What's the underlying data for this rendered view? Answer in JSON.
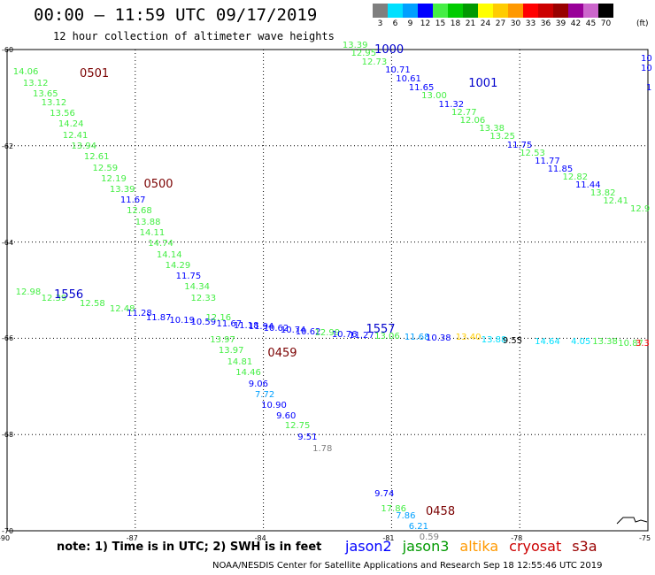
{
  "header": {
    "title": "00:00 – 11:59 UTC 09/17/2019",
    "subtitle": "12 hour collection of altimeter wave heights"
  },
  "legend": {
    "levels": [
      "3",
      "6",
      "9",
      "12",
      "15",
      "18",
      "21",
      "24",
      "27",
      "30",
      "33",
      "36",
      "39",
      "42",
      "45",
      "70"
    ],
    "colors": [
      "#7f7f7f",
      "#00e0ff",
      "#00a0ff",
      "#0000ff",
      "#44ee44",
      "#00cc00",
      "#009900",
      "#ffff00",
      "#ffcc00",
      "#ff9900",
      "#ff0000",
      "#cc0000",
      "#990000",
      "#990099",
      "#cc66cc",
      "#000000"
    ],
    "unit": "(ft)"
  },
  "axes": {
    "lon_labels": [
      "-90",
      "-87",
      "-84",
      "-81",
      "-78",
      "-75"
    ],
    "lat_labels": [
      "-60",
      "-62",
      "-64",
      "-66",
      "-68",
      "-70"
    ]
  },
  "tracks": [
    {
      "time": "0501",
      "lon": -88.3,
      "lat": -60.5
    },
    {
      "time": "0500",
      "lon": -86.8,
      "lat": -62.8
    },
    {
      "time": "0459",
      "lon": -83.9,
      "lat": -66.3
    },
    {
      "time": "0458",
      "lon": -80.2,
      "lat": -69.6
    },
    {
      "time": "1000",
      "lon": -81.4,
      "lat": -60.0
    },
    {
      "time": "1001",
      "lon": -79.2,
      "lat": -60.7
    },
    {
      "time": "1556",
      "lon": -88.9,
      "lat": -65.1
    },
    {
      "time": "1557",
      "lon": -81.6,
      "lat": -65.8
    }
  ],
  "observations": [
    {
      "v": "14.06",
      "c": "#44ee44",
      "lon": -89.86,
      "lat": -60.48
    },
    {
      "v": "13.12",
      "c": "#44ee44",
      "lon": -89.63,
      "lat": -60.72
    },
    {
      "v": "13.65",
      "c": "#44ee44",
      "lon": -89.4,
      "lat": -60.93
    },
    {
      "v": "13.12",
      "c": "#44ee44",
      "lon": -89.2,
      "lat": -61.13
    },
    {
      "v": "13.56",
      "c": "#44ee44",
      "lon": -89.0,
      "lat": -61.35
    },
    {
      "v": "14.24",
      "c": "#44ee44",
      "lon": -88.8,
      "lat": -61.57
    },
    {
      "v": "12.41",
      "c": "#44ee44",
      "lon": -88.7,
      "lat": -61.8
    },
    {
      "v": "13.94",
      "c": "#44ee44",
      "lon": -88.5,
      "lat": -62.02
    },
    {
      "v": "12.61",
      "c": "#44ee44",
      "lon": -88.2,
      "lat": -62.25
    },
    {
      "v": "12.59",
      "c": "#44ee44",
      "lon": -88.0,
      "lat": -62.48
    },
    {
      "v": "12.19",
      "c": "#44ee44",
      "lon": -87.8,
      "lat": -62.7
    },
    {
      "v": "13.39",
      "c": "#44ee44",
      "lon": -87.6,
      "lat": -62.93
    },
    {
      "v": "11.67",
      "c": "#0000ff",
      "lon": -87.35,
      "lat": -63.15
    },
    {
      "v": "12.68",
      "c": "#44ee44",
      "lon": -87.2,
      "lat": -63.37
    },
    {
      "v": "13.88",
      "c": "#44ee44",
      "lon": -87.0,
      "lat": -63.6
    },
    {
      "v": "14.11",
      "c": "#44ee44",
      "lon": -86.9,
      "lat": -63.82
    },
    {
      "v": "14.74",
      "c": "#44ee44",
      "lon": -86.7,
      "lat": -64.05
    },
    {
      "v": "14.14",
      "c": "#44ee44",
      "lon": -86.5,
      "lat": -64.28
    },
    {
      "v": "14.29",
      "c": "#44ee44",
      "lon": -86.3,
      "lat": -64.5
    },
    {
      "v": "11.75",
      "c": "#0000ff",
      "lon": -86.05,
      "lat": -64.73
    },
    {
      "v": "14.34",
      "c": "#44ee44",
      "lon": -85.85,
      "lat": -64.95
    },
    {
      "v": "12.33",
      "c": "#44ee44",
      "lon": -85.7,
      "lat": -65.18
    },
    {
      "v": "13.97",
      "c": "#44ee44",
      "lon": -85.25,
      "lat": -66.05
    },
    {
      "v": "13.97",
      "c": "#44ee44",
      "lon": -85.05,
      "lat": -66.27
    },
    {
      "v": "14.81",
      "c": "#44ee44",
      "lon": -84.85,
      "lat": -66.5
    },
    {
      "v": "14.46",
      "c": "#44ee44",
      "lon": -84.65,
      "lat": -66.73
    },
    {
      "v": "9.06",
      "c": "#0000ff",
      "lon": -84.35,
      "lat": -66.96
    },
    {
      "v": "7.72",
      "c": "#00a0ff",
      "lon": -84.2,
      "lat": -67.18
    },
    {
      "v": "10.90",
      "c": "#0000ff",
      "lon": -84.05,
      "lat": -67.4
    },
    {
      "v": "9.60",
      "c": "#0000ff",
      "lon": -83.7,
      "lat": -67.62
    },
    {
      "v": "12.75",
      "c": "#44ee44",
      "lon": -83.5,
      "lat": -67.84
    },
    {
      "v": "9.51",
      "c": "#0000ff",
      "lon": -83.2,
      "lat": -68.07
    },
    {
      "v": "1.78",
      "c": "#7f7f7f",
      "lon": -82.85,
      "lat": -68.3
    },
    {
      "v": "13.39",
      "c": "#44ee44",
      "lon": -82.15,
      "lat": -59.92
    },
    {
      "v": "12.95",
      "c": "#44ee44",
      "lon": -81.95,
      "lat": -60.1
    },
    {
      "v": "12.73",
      "c": "#44ee44",
      "lon": -81.7,
      "lat": -60.28
    },
    {
      "v": "10.71",
      "c": "#0000ff",
      "lon": -81.15,
      "lat": -60.45
    },
    {
      "v": "10.61",
      "c": "#0000ff",
      "lon": -80.9,
      "lat": -60.63
    },
    {
      "v": "11.65",
      "c": "#0000ff",
      "lon": -80.6,
      "lat": -60.8
    },
    {
      "v": "13.00",
      "c": "#44ee44",
      "lon": -80.3,
      "lat": -60.97
    },
    {
      "v": "11.32",
      "c": "#0000ff",
      "lon": -79.9,
      "lat": -61.15
    },
    {
      "v": "12.77",
      "c": "#44ee44",
      "lon": -79.6,
      "lat": -61.32
    },
    {
      "v": "12.06",
      "c": "#44ee44",
      "lon": -79.4,
      "lat": -61.48
    },
    {
      "v": "13.38",
      "c": "#44ee44",
      "lon": -78.95,
      "lat": -61.66
    },
    {
      "v": "13.25",
      "c": "#44ee44",
      "lon": -78.7,
      "lat": -61.82
    },
    {
      "v": "11.75",
      "c": "#0000ff",
      "lon": -78.3,
      "lat": -62.0
    },
    {
      "v": "12.53",
      "c": "#44ee44",
      "lon": -78.0,
      "lat": -62.17
    },
    {
      "v": "11.77",
      "c": "#0000ff",
      "lon": -77.65,
      "lat": -62.33
    },
    {
      "v": "11.85",
      "c": "#0000ff",
      "lon": -77.35,
      "lat": -62.5
    },
    {
      "v": "12.82",
      "c": "#44ee44",
      "lon": -77.0,
      "lat": -62.67
    },
    {
      "v": "11.44",
      "c": "#0000ff",
      "lon": -76.7,
      "lat": -62.83
    },
    {
      "v": "13.82",
      "c": "#44ee44",
      "lon": -76.35,
      "lat": -63.0
    },
    {
      "v": "12.41",
      "c": "#44ee44",
      "lon": -76.05,
      "lat": -63.17
    },
    {
      "v": "12.9",
      "c": "#44ee44",
      "lon": -75.25,
      "lat": -63.33
    },
    {
      "v": "12.98",
      "c": "#44ee44",
      "lon": -89.8,
      "lat": -65.05
    },
    {
      "v": "12.39",
      "c": "#44ee44",
      "lon": -89.2,
      "lat": -65.18
    },
    {
      "v": "12.58",
      "c": "#44ee44",
      "lon": -88.3,
      "lat": -65.3
    },
    {
      "v": "12.48",
      "c": "#44ee44",
      "lon": -87.6,
      "lat": -65.4
    },
    {
      "v": "11.28",
      "c": "#0000ff",
      "lon": -87.2,
      "lat": -65.5
    },
    {
      "v": "11.87",
      "c": "#0000ff",
      "lon": -86.75,
      "lat": -65.58
    },
    {
      "v": "10.19",
      "c": "#0000ff",
      "lon": -86.2,
      "lat": -65.64
    },
    {
      "v": "10.59",
      "c": "#0000ff",
      "lon": -85.7,
      "lat": -65.68
    },
    {
      "v": "12.16",
      "c": "#44ee44",
      "lon": -85.35,
      "lat": -65.58
    },
    {
      "v": "11.67",
      "c": "#0000ff",
      "lon": -85.1,
      "lat": -65.72
    },
    {
      "v": "11.18",
      "c": "#0000ff",
      "lon": -84.7,
      "lat": -65.76
    },
    {
      "v": "11.94",
      "c": "#0000ff",
      "lon": -84.35,
      "lat": -65.78
    },
    {
      "v": "10.62",
      "c": "#0000ff",
      "lon": -84.0,
      "lat": -65.8
    },
    {
      "v": "10.74",
      "c": "#0000ff",
      "lon": -83.6,
      "lat": -65.84
    },
    {
      "v": "10.62",
      "c": "#0000ff",
      "lon": -83.25,
      "lat": -65.88
    },
    {
      "v": "12.99",
      "c": "#44ee44",
      "lon": -82.8,
      "lat": -65.9
    },
    {
      "v": "10.76",
      "c": "#0000ff",
      "lon": -82.4,
      "lat": -65.94
    },
    {
      "v": "11.27",
      "c": "#0000ff",
      "lon": -82.0,
      "lat": -65.96
    },
    {
      "v": "13.06",
      "c": "#44ee44",
      "lon": -81.4,
      "lat": -65.98
    },
    {
      "v": "11.68",
      "c": "#00a0ff",
      "lon": -80.7,
      "lat": -66.0
    },
    {
      "v": "10.38",
      "c": "#0000ff",
      "lon": -80.2,
      "lat": -66.02
    },
    {
      "v": "13.40",
      "c": "#ffcc00",
      "lon": -79.5,
      "lat": -66.0
    },
    {
      "v": "13.88",
      "c": "#00e0ff",
      "lon": -78.9,
      "lat": -66.04
    },
    {
      "v": "9.55",
      "c": "#000000",
      "lon": -78.4,
      "lat": -66.06
    },
    {
      "v": "14.64",
      "c": "#00e0ff",
      "lon": -77.65,
      "lat": -66.08
    },
    {
      "v": "4.05",
      "c": "#00e0ff",
      "lon": -76.8,
      "lat": -66.08
    },
    {
      "v": "13.38",
      "c": "#44ee44",
      "lon": -76.3,
      "lat": -66.08
    },
    {
      "v": "10.87",
      "c": "#44ee44",
      "lon": -75.7,
      "lat": -66.12
    },
    {
      "v": "3.3",
      "c": "#ff0000",
      "lon": -75.25,
      "lat": -66.12
    },
    {
      "v": "9.74",
      "c": "#0000ff",
      "lon": -81.4,
      "lat": -69.25
    },
    {
      "v": "17.86",
      "c": "#44ee44",
      "lon": -81.25,
      "lat": -69.55
    },
    {
      "v": "7.86",
      "c": "#00a0ff",
      "lon": -80.9,
      "lat": -69.7
    },
    {
      "v": "6.21",
      "c": "#00a0ff",
      "lon": -80.6,
      "lat": -69.92
    },
    {
      "v": "0.59",
      "c": "#7f7f7f",
      "lon": -80.35,
      "lat": -70.15
    },
    {
      "v": "10",
      "c": "#0000ff",
      "lon": -74.95,
      "lat": -60.2
    },
    {
      "v": "10",
      "c": "#0000ff",
      "lon": -74.95,
      "lat": -60.4
    },
    {
      "v": "1",
      "c": "#0000ff",
      "lon": -74.85,
      "lat": -60.8
    }
  ],
  "note": "note: 1) Time is in UTC; 2) SWH is in feet",
  "satellites": [
    {
      "name": "jason2",
      "color": "#0000ff"
    },
    {
      "name": "jason3",
      "color": "#009900"
    },
    {
      "name": "altika",
      "color": "#ff9900"
    },
    {
      "name": "cryosat",
      "color": "#cc0000"
    },
    {
      "name": "s3a",
      "color": "#990000"
    }
  ],
  "footer": "NOAA/NESDIS Center for Satellite Applications and Research    Sep 18 12:55:46 UTC 2019"
}
